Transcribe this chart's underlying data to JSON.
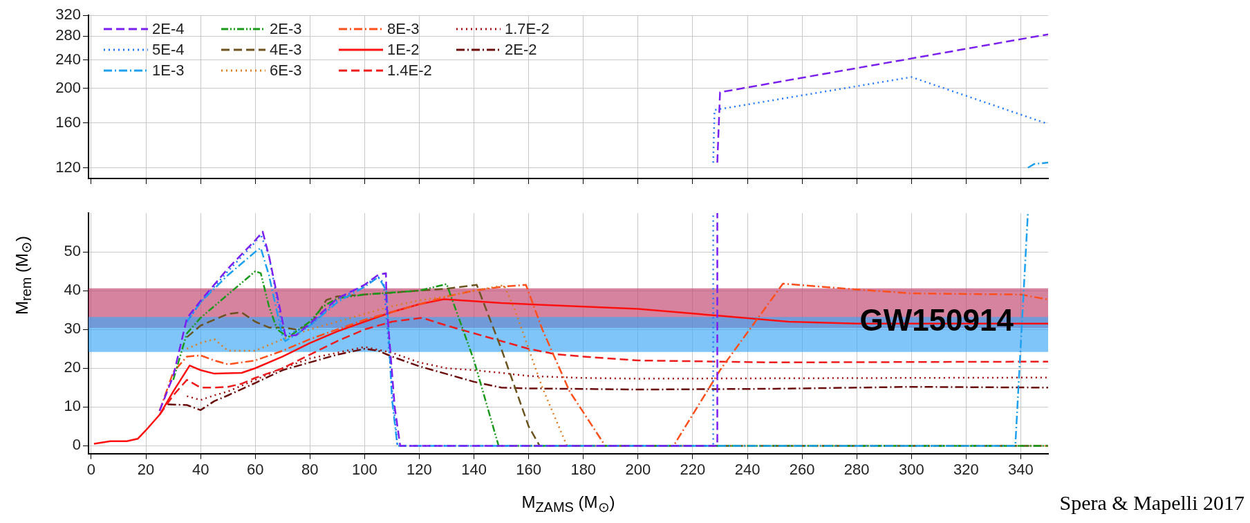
{
  "chart_data": [
    {
      "type": "line",
      "xlim": [
        -1,
        350
      ],
      "xticks": [
        0,
        20,
        40,
        60,
        80,
        100,
        120,
        140,
        160,
        180,
        200,
        220,
        240,
        260,
        280,
        300,
        320,
        340
      ],
      "ylim": [
        112,
        320
      ],
      "yticks": [
        120,
        160,
        200,
        240,
        280,
        320
      ],
      "log": true,
      "grid": true,
      "tick_labels": "y",
      "series": [
        {
          "color": "#7a1ff0",
          "line_style": "dashed",
          "x": [
            229,
            230,
            350
          ],
          "values": [
            124,
            195,
            283
          ]
        },
        {
          "color": "#1f78ff",
          "line_style": "dotted",
          "x": [
            227.5,
            228,
            300,
            350
          ],
          "values": [
            124,
            174,
            215,
            159
          ]
        },
        {
          "color": "#1ea0f0",
          "line_style": "dashdot",
          "x": [
            342.6,
            345,
            350
          ],
          "values": [
            120,
            123,
            124
          ]
        }
      ]
    },
    {
      "type": "line",
      "xlabel": "M$_{ZAMS}$ (M$_{⊙}$)",
      "ylabel": "M$_{rem}$ (M$_{⊙}$)",
      "xlim": [
        -1,
        350
      ],
      "xticks": [
        0,
        20,
        40,
        60,
        80,
        100,
        120,
        140,
        160,
        180,
        200,
        220,
        240,
        260,
        280,
        300,
        320,
        340
      ],
      "ylim": [
        -2,
        60
      ],
      "yticks": [
        0,
        10,
        20,
        30,
        40,
        50
      ],
      "grid": true,
      "legend": "top left",
      "bands": [
        {
          "axis": "y",
          "from": 30.4,
          "to": 40.6,
          "color": "#c0406b"
        },
        {
          "axis": "y",
          "from": 24.2,
          "to": 33.2,
          "color": "#3aa6f7",
          "label": "GW150914"
        }
      ],
      "annotations": [
        "Spera & Mapelli 2017"
      ],
      "series": [
        {
          "name": "2E-4",
          "color": "#7a1ff0",
          "line_style": "dashed",
          "x": [
            25,
            30,
            35,
            40,
            50,
            60,
            62.7,
            65,
            70,
            71,
            75,
            80,
            90,
            100,
            105,
            107.8,
            108,
            111,
            113,
            228,
            229,
            229
          ],
          "values": [
            9,
            18,
            32.9,
            37.4,
            45.7,
            53,
            55.2,
            49,
            32,
            28.4,
            28.5,
            31.5,
            38,
            41.5,
            44.1,
            44.5,
            37,
            10,
            0,
            0,
            0,
            60
          ]
        },
        {
          "name": "5E-4",
          "color": "#1f78ff",
          "line_style": "dotted",
          "x": [
            35,
            40,
            50,
            60,
            62,
            65,
            70,
            71,
            80,
            90,
            100,
            105,
            107,
            110,
            112,
            227.5,
            227.5
          ],
          "values": [
            32,
            37,
            45,
            52.5,
            54.5,
            49,
            30,
            28.5,
            31,
            37.5,
            41.5,
            43.5,
            42,
            15,
            0,
            0,
            60
          ]
        },
        {
          "name": "1E-3",
          "color": "#1ea0f0",
          "line_style": "dashdot",
          "x": [
            35,
            40,
            50,
            60,
            62,
            65,
            70,
            71,
            80,
            90,
            100,
            105,
            108,
            110,
            112,
            338,
            342.6
          ],
          "values": [
            32,
            37,
            44,
            50,
            51,
            44,
            28,
            27,
            31,
            37,
            41,
            43.5,
            40,
            12,
            0,
            0,
            60
          ]
        },
        {
          "name": "2E-3",
          "color": "#1a9a1a",
          "line_style": "dashdotdot",
          "x": [
            30,
            35,
            40,
            50,
            60,
            62,
            65,
            68,
            72,
            80,
            85,
            90,
            100,
            110,
            120,
            130,
            140,
            149,
            350
          ],
          "values": [
            17,
            29,
            33,
            39,
            45,
            44.5,
            36,
            30,
            28,
            32,
            36,
            38,
            39,
            39.5,
            40,
            41.7,
            22,
            0,
            0
          ]
        },
        {
          "name": "4E-3",
          "color": "#6b5320",
          "line_style": "dashed",
          "x": [
            35,
            40,
            50,
            55,
            60,
            65,
            70,
            75,
            80,
            86,
            90,
            100,
            110,
            120,
            130,
            141,
            150,
            160,
            164,
            350
          ],
          "values": [
            28,
            31,
            34,
            34.4,
            32,
            30.5,
            30.5,
            30,
            31,
            37.6,
            38.5,
            39,
            39.5,
            40,
            40.5,
            41.5,
            25,
            5,
            0,
            0
          ]
        },
        {
          "name": "6E-3",
          "color": "#e07b20",
          "line_style": "dotted",
          "x": [
            35,
            40,
            45,
            50,
            60,
            65,
            70,
            80,
            90,
            100,
            110,
            120,
            130,
            140,
            151,
            155,
            165,
            174,
            350
          ],
          "values": [
            25,
            26.5,
            27.5,
            24.5,
            24.5,
            26,
            27.5,
            30,
            32,
            34,
            36,
            37.5,
            38.5,
            40,
            41.4,
            35,
            15,
            0,
            0
          ]
        },
        {
          "name": "8E-3",
          "color": "#ff4f1a",
          "line_style": "dashdot",
          "x": [
            25,
            30,
            35,
            40,
            45,
            50,
            60,
            70,
            80,
            90,
            100,
            110,
            120,
            130,
            140,
            150,
            159,
            165,
            175,
            188,
            213,
            230,
            253,
            280,
            300,
            340,
            350
          ],
          "values": [
            9,
            19,
            23,
            23.3,
            22,
            21,
            22,
            24.5,
            27.5,
            30,
            32.5,
            34.5,
            36.5,
            38.5,
            40,
            41,
            41.5,
            30,
            14,
            0,
            0,
            19.5,
            41.8,
            40.3,
            39.3,
            39,
            37.7
          ]
        },
        {
          "name": "1E-2",
          "color": "#ff1010",
          "line_style": "solid",
          "x": [
            1,
            7,
            13,
            17,
            20,
            25,
            30,
            36,
            40,
            45,
            55,
            60,
            70,
            80,
            90,
            100,
            110,
            120,
            129,
            150,
            200,
            230,
            255,
            280,
            350
          ],
          "values": [
            0.5,
            1.2,
            1.2,
            1.8,
            4,
            8,
            14,
            20.7,
            19.5,
            18.6,
            18.8,
            20,
            23,
            26.5,
            29.5,
            32,
            34.5,
            36.5,
            37.8,
            36.8,
            35.3,
            33.5,
            32,
            31.5,
            31.5
          ]
        },
        {
          "name": "1.4E-2",
          "color": "#ee1c1c",
          "line_style": "dashed",
          "x": [
            25,
            30,
            35,
            40,
            45,
            50,
            55,
            60,
            70,
            80,
            90,
            100,
            110,
            121,
            130,
            140,
            150,
            160,
            170,
            180,
            200,
            250,
            300,
            350
          ],
          "values": [
            8,
            13,
            17,
            15,
            15,
            15.2,
            16,
            17.5,
            20,
            23.5,
            27,
            30,
            32,
            33,
            31,
            29,
            27,
            25,
            23.6,
            23,
            22,
            21.5,
            21.6,
            21.7
          ]
        },
        {
          "name": "1.7E-2",
          "color": "#a01010",
          "line_style": "dotted",
          "x": [
            35,
            40,
            45,
            50,
            60,
            70,
            80,
            90,
            100,
            110,
            120,
            130,
            140,
            150,
            160,
            180,
            200,
            250,
            300,
            350
          ],
          "values": [
            12.8,
            11.8,
            13,
            14,
            17,
            20,
            22.5,
            24,
            25.5,
            24,
            21.5,
            20,
            19.5,
            18.8,
            18,
            17.5,
            17.3,
            17.4,
            17.5,
            17.6
          ]
        },
        {
          "name": "2E-2",
          "color": "#6b0c0c",
          "line_style": "dashdot",
          "x": [
            28,
            35,
            40,
            45,
            50,
            60,
            70,
            80,
            90,
            100,
            105,
            110,
            120,
            130,
            140,
            150,
            160,
            200,
            250,
            300,
            350
          ],
          "values": [
            10.7,
            10.5,
            9.2,
            11.5,
            13,
            16.2,
            19.5,
            21.5,
            23.5,
            25,
            24.5,
            23,
            20.5,
            18.5,
            16.5,
            15,
            14.8,
            14.5,
            14.7,
            15.2,
            15
          ]
        }
      ]
    }
  ]
}
